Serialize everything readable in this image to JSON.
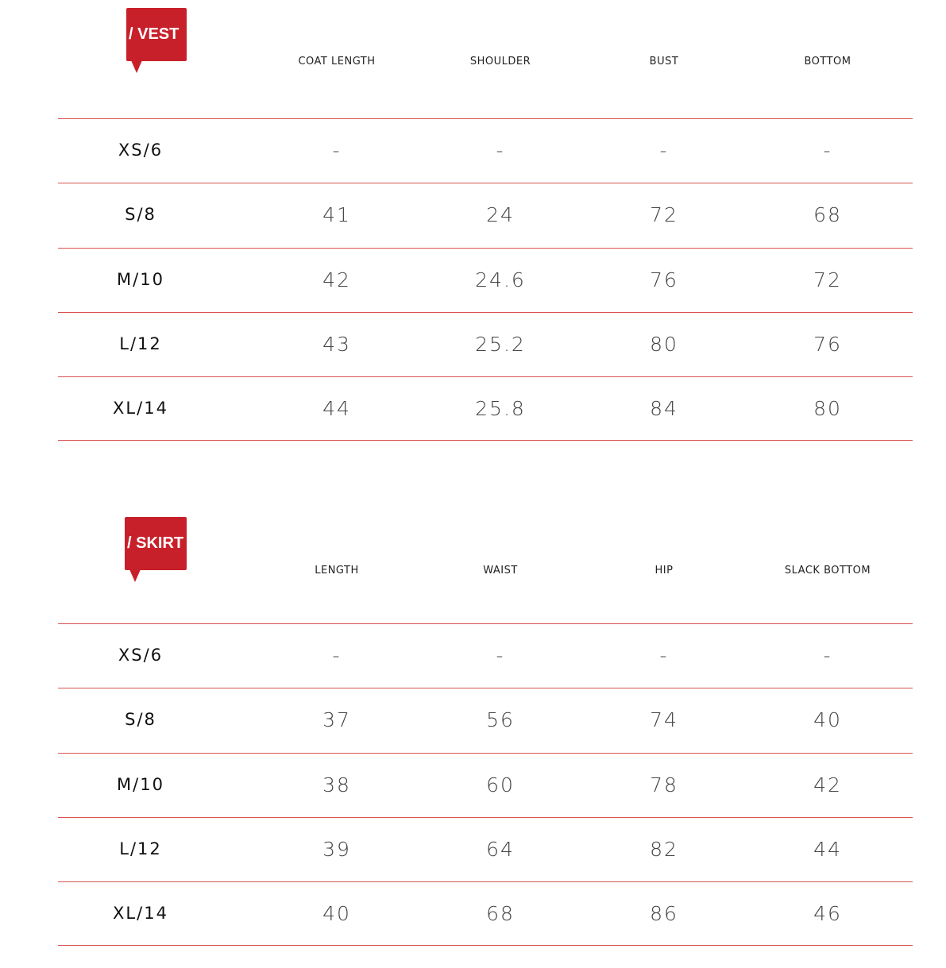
{
  "colors": {
    "accent": "#c8202a",
    "rule": "#d9534f"
  },
  "tables": [
    {
      "title": "/ VEST",
      "headers": [
        "COAT LENGTH",
        "SHOULDER",
        "BUST",
        "BOTTOM"
      ],
      "rows": [
        {
          "size": "XS/6",
          "values": [
            "-",
            "-",
            "-",
            "-"
          ]
        },
        {
          "size": "S/8",
          "values": [
            "41",
            "24",
            "72",
            "68"
          ]
        },
        {
          "size": "M/10",
          "values": [
            "42",
            "24.6",
            "76",
            "72"
          ]
        },
        {
          "size": "L/12",
          "values": [
            "43",
            "25.2",
            "80",
            "76"
          ]
        },
        {
          "size": "XL/14",
          "values": [
            "44",
            "25.8",
            "84",
            "80"
          ]
        }
      ]
    },
    {
      "title": "/ SKIRT",
      "headers": [
        "LENGTH",
        "WAIST",
        "HIP",
        "SLACK BOTTOM"
      ],
      "rows": [
        {
          "size": "XS/6",
          "values": [
            "-",
            "-",
            "-",
            "-"
          ]
        },
        {
          "size": "S/8",
          "values": [
            "37",
            "56",
            "74",
            "40"
          ]
        },
        {
          "size": "M/10",
          "values": [
            "38",
            "60",
            "78",
            "42"
          ]
        },
        {
          "size": "L/12",
          "values": [
            "39",
            "64",
            "82",
            "44"
          ]
        },
        {
          "size": "XL/14",
          "values": [
            "40",
            "68",
            "86",
            "46"
          ]
        }
      ]
    }
  ]
}
